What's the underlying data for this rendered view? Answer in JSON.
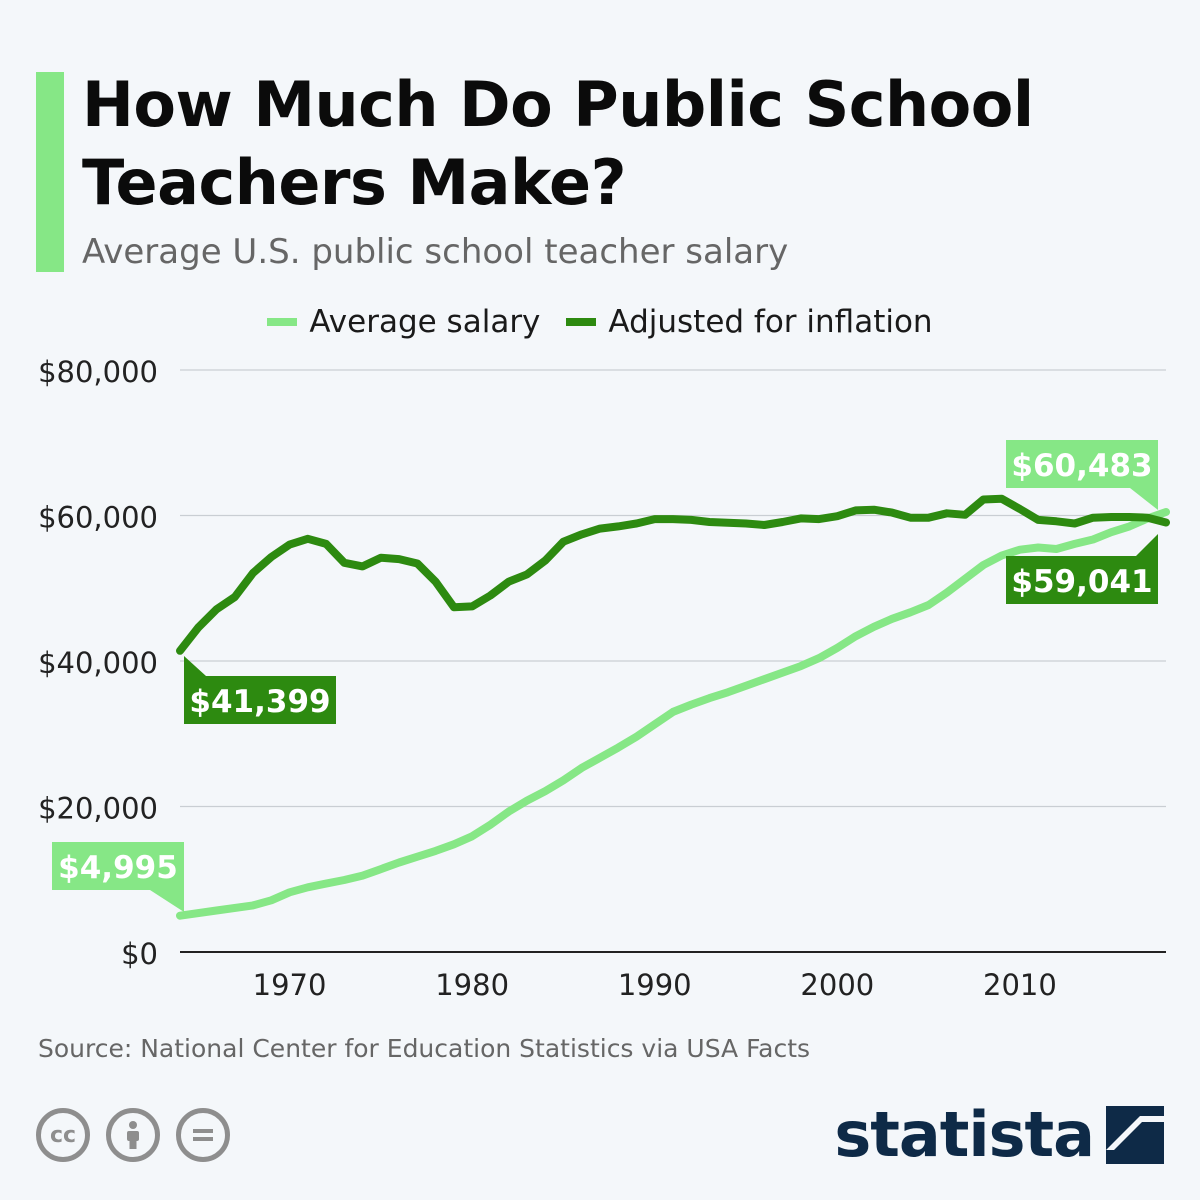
{
  "header": {
    "title": "How Much Do Public School Teachers Make?",
    "subtitle": "Average U.S. public school teacher salary",
    "accent_color": "#86e786"
  },
  "legend": [
    {
      "label": "Average salary",
      "color": "#86e786"
    },
    {
      "label": "Adjusted for inflation",
      "color": "#2d8a10"
    }
  ],
  "chart_data": {
    "type": "line",
    "title": "How Much Do Public School Teachers Make?",
    "subtitle": "Average U.S. public school teacher salary",
    "xlim": [
      1964,
      2018
    ],
    "ylim": [
      0,
      80000
    ],
    "x_ticks": [
      1970,
      1980,
      1990,
      2000,
      2010
    ],
    "y_ticks": [
      0,
      20000,
      40000,
      60000,
      80000
    ],
    "y_tick_labels": [
      "$0",
      "$20,000",
      "$40,000",
      "$60,000",
      "$80,000"
    ],
    "grid": true,
    "legend_position": "top-center",
    "series": [
      {
        "name": "Average salary",
        "color": "#86e786",
        "points": [
          [
            1964,
            4995
          ],
          [
            1966,
            5700
          ],
          [
            1968,
            6400
          ],
          [
            1969,
            7100
          ],
          [
            1970,
            8200
          ],
          [
            1971,
            8900
          ],
          [
            1972,
            9400
          ],
          [
            1973,
            9900
          ],
          [
            1974,
            10500
          ],
          [
            1975,
            11400
          ],
          [
            1976,
            12300
          ],
          [
            1977,
            13100
          ],
          [
            1978,
            13900
          ],
          [
            1979,
            14800
          ],
          [
            1980,
            15900
          ],
          [
            1981,
            17500
          ],
          [
            1982,
            19300
          ],
          [
            1983,
            20800
          ],
          [
            1984,
            22100
          ],
          [
            1985,
            23600
          ],
          [
            1986,
            25300
          ],
          [
            1987,
            26700
          ],
          [
            1988,
            28100
          ],
          [
            1989,
            29600
          ],
          [
            1990,
            31300
          ],
          [
            1991,
            33000
          ],
          [
            1992,
            34000
          ],
          [
            1993,
            34900
          ],
          [
            1994,
            35700
          ],
          [
            1995,
            36600
          ],
          [
            1996,
            37500
          ],
          [
            1997,
            38400
          ],
          [
            1998,
            39300
          ],
          [
            1999,
            40400
          ],
          [
            2000,
            41800
          ],
          [
            2001,
            43400
          ],
          [
            2002,
            44700
          ],
          [
            2003,
            45800
          ],
          [
            2004,
            46700
          ],
          [
            2005,
            47700
          ],
          [
            2006,
            49400
          ],
          [
            2007,
            51300
          ],
          [
            2008,
            53200
          ],
          [
            2009,
            54500
          ],
          [
            2010,
            55300
          ],
          [
            2011,
            55600
          ],
          [
            2012,
            55400
          ],
          [
            2013,
            56100
          ],
          [
            2014,
            56700
          ],
          [
            2015,
            57700
          ],
          [
            2016,
            58500
          ],
          [
            2017,
            59600
          ],
          [
            2018,
            60483
          ]
        ],
        "start_label": "$4,995",
        "end_label": "$60,483"
      },
      {
        "name": "Adjusted for inflation",
        "color": "#2d8a10",
        "points": [
          [
            1964,
            41399
          ],
          [
            1965,
            44600
          ],
          [
            1966,
            47100
          ],
          [
            1967,
            48800
          ],
          [
            1968,
            52100
          ],
          [
            1969,
            54300
          ],
          [
            1970,
            56000
          ],
          [
            1971,
            56800
          ],
          [
            1972,
            56100
          ],
          [
            1973,
            53500
          ],
          [
            1974,
            53000
          ],
          [
            1975,
            54200
          ],
          [
            1976,
            54000
          ],
          [
            1977,
            53400
          ],
          [
            1978,
            50900
          ],
          [
            1979,
            47400
          ],
          [
            1980,
            47500
          ],
          [
            1981,
            49000
          ],
          [
            1982,
            50900
          ],
          [
            1983,
            51900
          ],
          [
            1984,
            53800
          ],
          [
            1985,
            56400
          ],
          [
            1986,
            57400
          ],
          [
            1987,
            58200
          ],
          [
            1988,
            58500
          ],
          [
            1989,
            58900
          ],
          [
            1990,
            59500
          ],
          [
            1991,
            59500
          ],
          [
            1992,
            59400
          ],
          [
            1993,
            59100
          ],
          [
            1994,
            59000
          ],
          [
            1995,
            58900
          ],
          [
            1996,
            58700
          ],
          [
            1997,
            59100
          ],
          [
            1998,
            59600
          ],
          [
            1999,
            59500
          ],
          [
            2000,
            59900
          ],
          [
            2001,
            60700
          ],
          [
            2002,
            60800
          ],
          [
            2003,
            60400
          ],
          [
            2004,
            59700
          ],
          [
            2005,
            59700
          ],
          [
            2006,
            60300
          ],
          [
            2007,
            60100
          ],
          [
            2008,
            62200
          ],
          [
            2009,
            62300
          ],
          [
            2010,
            60900
          ],
          [
            2011,
            59400
          ],
          [
            2012,
            59200
          ],
          [
            2013,
            58900
          ],
          [
            2014,
            59700
          ],
          [
            2015,
            59800
          ],
          [
            2016,
            59800
          ],
          [
            2017,
            59700
          ],
          [
            2018,
            59041
          ]
        ],
        "start_label": "$41,399",
        "end_label": "$59,041"
      }
    ]
  },
  "footer": {
    "source": "Source: National Center for Education Statistics via USA Facts",
    "license_icons": [
      "cc-icon",
      "attribution-icon",
      "no-derivatives-icon"
    ],
    "brand": "statista"
  }
}
